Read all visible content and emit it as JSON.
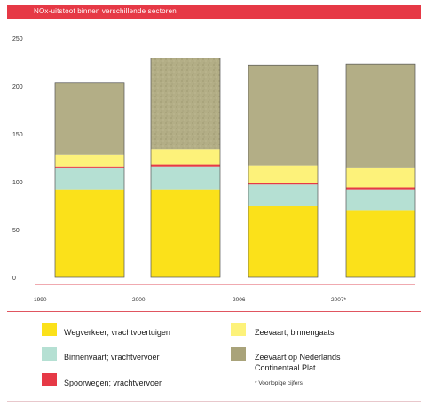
{
  "chart_data": {
    "type": "bar",
    "stacked": true,
    "title": "NOx-uitstoot binnen verschillende sectoren",
    "categories": [
      "1990",
      "2000",
      "2006",
      "2007*"
    ],
    "ylim": [
      0,
      250
    ],
    "yticks": [
      0,
      50,
      100,
      150,
      200,
      250
    ],
    "grid": false,
    "legend_position": "bottom",
    "series": [
      {
        "name": "Wegverkeer; vrachtvoertuigen",
        "color": "#fbe11a",
        "values": [
          92,
          92,
          75,
          70
        ]
      },
      {
        "name": "Binnenvaart; vrachtvervoer",
        "color": "#b5e0d3",
        "values": [
          22,
          24,
          22,
          22
        ]
      },
      {
        "name": "Spoorwegen; vrachtvervoer",
        "color": "#e63946",
        "values": [
          2,
          2,
          2,
          2
        ]
      },
      {
        "name": "Zeevaart; binnengaats",
        "color": "#fdf27a",
        "values": [
          12,
          16,
          18,
          20
        ]
      },
      {
        "name": "Zeevaart op Nederlands Continentaal Plat",
        "color": "#b3ae86",
        "values": [
          75,
          95,
          105,
          109
        ]
      }
    ],
    "footnote": "* Voorlopige cijfers"
  }
}
